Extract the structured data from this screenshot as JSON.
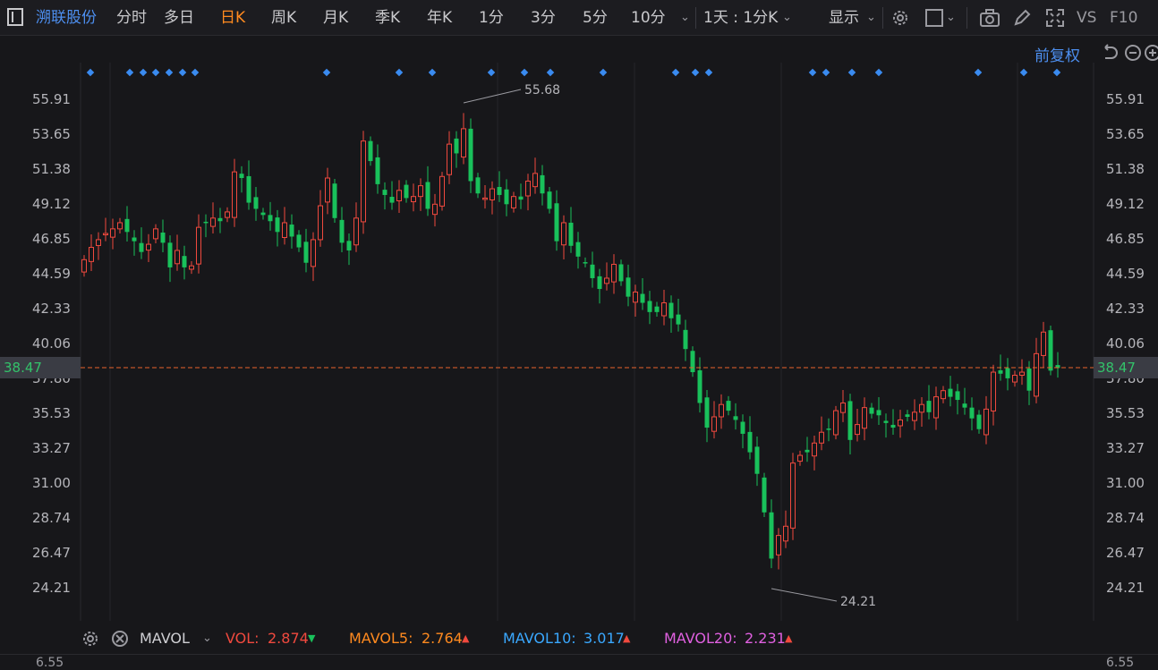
{
  "toolbar": {
    "stock_name": "溯联股份",
    "periods": [
      "分时",
      "多日",
      "日K",
      "周K",
      "月K",
      "季K",
      "年K",
      "1分",
      "3分",
      "5分",
      "10分"
    ],
    "active_period": "日K",
    "interval": "1天 : 1分K",
    "display": "显示",
    "vs": "VS",
    "f10": "F10"
  },
  "adjust": "前复权",
  "y_axis_labels": [
    "55.91",
    "53.65",
    "51.38",
    "49.12",
    "46.85",
    "44.59",
    "42.33",
    "40.06",
    "37.80",
    "35.53",
    "33.27",
    "31.00",
    "28.74",
    "26.47",
    "24.21"
  ],
  "current_price": "38.47",
  "high_label": "55.68",
  "low_label": "24.21",
  "indicators": {
    "name": "MAVOL",
    "vol_label": "VOL:",
    "vol_value": "2.874",
    "mavol5_label": "MAVOL5:",
    "mavol5_value": "2.764",
    "mavol10_label": "MAVOL10:",
    "mavol10_value": "3.017",
    "mavol20_label": "MAVOL20:",
    "mavol20_value": "2.231"
  },
  "bottom_axis_label": "6.55",
  "colors": {
    "up": "#f0493e",
    "down": "#19c15b",
    "accent": "#ff8a1f",
    "link": "#4d8ff0",
    "mavol5": "#ff8a1f",
    "mavol10": "#3aa8ff",
    "mavol20": "#e060e0"
  },
  "chart_data": {
    "type": "candlestick",
    "y_range": [
      24.21,
      55.91
    ],
    "closes": [
      45.5,
      46.3,
      46.8,
      47.2,
      47.5,
      47.9,
      47.3,
      46.7,
      46.0,
      46.5,
      47.5,
      46.6,
      45.0,
      46.1,
      45.0,
      45.1,
      47.6,
      47.9,
      48.2,
      48.0,
      48.6,
      51.2,
      50.8,
      49.2,
      48.8,
      48.4,
      48.0,
      47.3,
      47.9,
      47.0,
      46.3,
      45.3,
      46.8,
      49.0,
      50.8,
      48.2,
      46.6,
      46.1,
      48.2,
      53.2,
      51.9,
      50.4,
      49.7,
      49.2,
      50.0,
      49.5,
      49.6,
      50.3,
      48.8,
      49.1,
      50.9,
      53.0,
      52.4,
      54.0,
      50.6,
      49.8,
      49.5,
      50.1,
      49.7,
      49.1,
      49.6,
      49.4,
      50.6,
      51.1,
      49.8,
      48.8,
      46.7,
      47.9,
      46.4,
      45.7,
      45.3,
      44.3,
      43.6,
      44.3,
      45.2,
      44.1,
      43.1,
      43.4,
      42.7,
      42.1,
      42.1,
      42.7,
      41.7,
      41.3,
      39.7,
      38.2,
      36.2,
      34.6,
      35.3,
      36.1,
      35.7,
      35.1,
      34.2,
      33.0,
      31.6,
      29.1,
      26.1,
      27.6,
      28.2,
      32.3,
      32.8,
      33.0,
      33.6,
      34.3,
      34.5,
      35.7,
      36.2,
      33.8,
      34.8,
      35.9,
      35.5,
      35.4,
      34.9,
      34.6,
      35.1,
      35.3,
      35.6,
      36.1,
      35.6,
      36.6,
      37.0,
      36.6,
      36.4,
      35.9,
      35.2,
      34.5,
      35.8,
      38.2,
      38.1,
      37.8,
      38.0,
      38.2,
      37.0,
      39.4,
      40.8,
      38.3,
      38.47
    ]
  }
}
